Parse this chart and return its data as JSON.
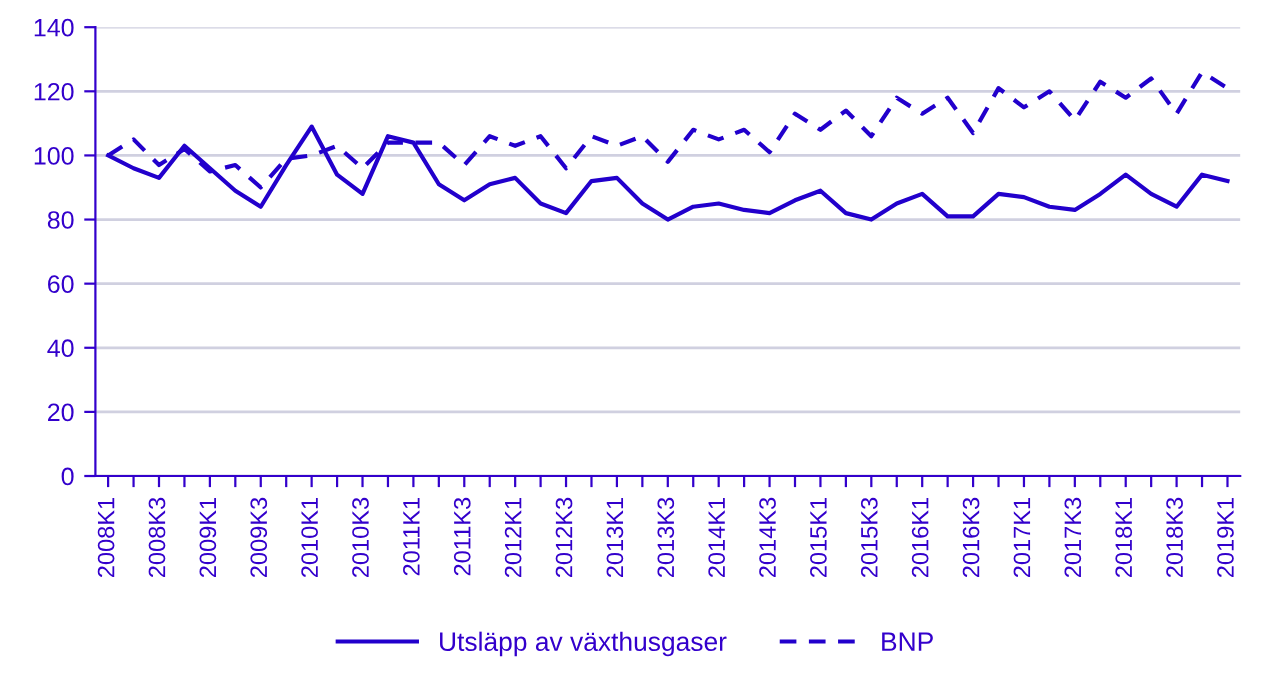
{
  "chart_data": {
    "type": "line",
    "categories": [
      "2008K1",
      null,
      "2008K3",
      null,
      "2009K1",
      null,
      "2009K3",
      null,
      "2010K1",
      null,
      "2010K3",
      null,
      "2011K1",
      null,
      "2011K3",
      null,
      "2012K1",
      null,
      "2012K3",
      null,
      "2013K1",
      null,
      "2013K3",
      null,
      "2014K1",
      null,
      "2014K3",
      null,
      "2015K1",
      null,
      "2015K3",
      null,
      "2016K1",
      null,
      "2016K3",
      null,
      "2017K1",
      null,
      "2017K3",
      null,
      "2018K1",
      null,
      "2018K3",
      null,
      "2019K1"
    ],
    "series": [
      {
        "name": "Utsläpp av växthusgaser",
        "color": "#2200cc",
        "line_style": "solid",
        "values": [
          100,
          96,
          93,
          103,
          96,
          89,
          84,
          97,
          109,
          94,
          88,
          106,
          104,
          91,
          86,
          91,
          93,
          85,
          82,
          92,
          93,
          85,
          80,
          84,
          85,
          83,
          82,
          86,
          89,
          82,
          80,
          85,
          88,
          81,
          81,
          88,
          87,
          84,
          83,
          88,
          94,
          88,
          84,
          94,
          92
        ]
      },
      {
        "name": "BNP",
        "color": "#2200cc",
        "line_style": "dashed",
        "values": [
          100,
          105,
          97,
          102,
          95,
          97,
          90,
          99,
          100,
          103,
          96,
          104,
          104,
          104,
          97,
          106,
          103,
          106,
          96,
          106,
          103,
          106,
          98,
          108,
          105,
          108,
          101,
          113,
          108,
          114,
          106,
          118,
          113,
          118,
          107,
          121,
          115,
          120,
          111,
          123,
          118,
          124,
          113,
          126,
          121
        ]
      }
    ],
    "ylim": [
      0,
      140
    ],
    "yticks": [
      0,
      20,
      40,
      60,
      80,
      100,
      120,
      140
    ],
    "grid": "y",
    "legend": "bottom",
    "marker": "none"
  }
}
